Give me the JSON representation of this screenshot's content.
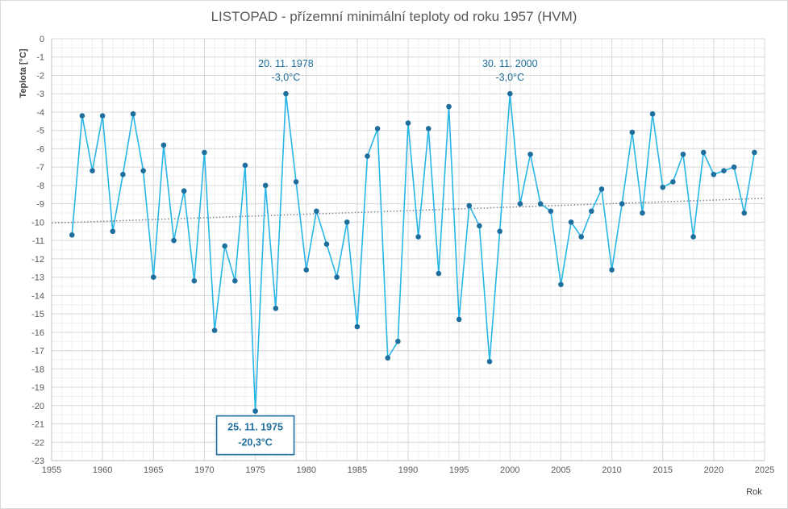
{
  "chart_data": {
    "type": "line",
    "title": "LISTOPAD - přízemní minimální teploty od roku 1957 (HVM)",
    "xlabel": "Rok",
    "ylabel": "Teplota [°C]",
    "xlim": [
      1955,
      2025
    ],
    "ylim": [
      -23,
      0
    ],
    "xticks": [
      1955,
      1960,
      1965,
      1970,
      1975,
      1980,
      1985,
      1990,
      1995,
      2000,
      2005,
      2010,
      2015,
      2020,
      2025
    ],
    "yticks": [
      0,
      -1,
      -2,
      -3,
      -4,
      -5,
      -6,
      -7,
      -8,
      -9,
      -10,
      -11,
      -12,
      -13,
      -14,
      -15,
      -16,
      -17,
      -18,
      -19,
      -20,
      -21,
      -22,
      -23
    ],
    "grid": true,
    "series": [
      {
        "color": "#29b6e6",
        "marker_color": "#1f6f9e",
        "points": [
          [
            1957,
            -10.7
          ],
          [
            1958,
            -4.2
          ],
          [
            1959,
            -7.2
          ],
          [
            1960,
            -4.2
          ],
          [
            1961,
            -10.5
          ],
          [
            1962,
            -7.4
          ],
          [
            1963,
            -4.1
          ],
          [
            1964,
            -7.2
          ],
          [
            1965,
            -13.0
          ],
          [
            1966,
            -5.8
          ],
          [
            1967,
            -11.0
          ],
          [
            1968,
            -8.3
          ],
          [
            1969,
            -13.2
          ],
          [
            1970,
            -6.2
          ],
          [
            1971,
            -15.9
          ],
          [
            1972,
            -11.3
          ],
          [
            1973,
            -13.2
          ],
          [
            1974,
            -6.9
          ],
          [
            1975,
            -20.3
          ],
          [
            1976,
            -8.0
          ],
          [
            1977,
            -14.7
          ],
          [
            1978,
            -3.0
          ],
          [
            1979,
            -7.8
          ],
          [
            1980,
            -12.6
          ],
          [
            1981,
            -9.4
          ],
          [
            1982,
            -11.2
          ],
          [
            1983,
            -13.0
          ],
          [
            1984,
            -10.0
          ],
          [
            1985,
            -15.7
          ],
          [
            1986,
            -6.4
          ],
          [
            1987,
            -4.9
          ],
          [
            1988,
            -17.4
          ],
          [
            1989,
            -16.5
          ],
          [
            1990,
            -4.6
          ],
          [
            1991,
            -10.8
          ],
          [
            1992,
            -4.9
          ],
          [
            1993,
            -12.8
          ],
          [
            1994,
            -3.7
          ],
          [
            1995,
            -15.3
          ],
          [
            1996,
            -9.1
          ],
          [
            1997,
            -10.2
          ],
          [
            1998,
            -17.6
          ],
          [
            1999,
            -10.5
          ],
          [
            2000,
            -3.0
          ],
          [
            2001,
            -9.0
          ],
          [
            2002,
            -6.3
          ],
          [
            2003,
            -9.0
          ],
          [
            2004,
            -9.4
          ],
          [
            2005,
            -13.4
          ],
          [
            2006,
            -10.0
          ],
          [
            2007,
            -10.8
          ],
          [
            2008,
            -9.4
          ],
          [
            2009,
            -8.2
          ],
          [
            2010,
            -12.6
          ],
          [
            2011,
            -9.0
          ],
          [
            2012,
            -5.1
          ],
          [
            2013,
            -9.5
          ],
          [
            2014,
            -4.1
          ],
          [
            2015,
            -8.1
          ],
          [
            2016,
            -7.8
          ],
          [
            2017,
            -6.3
          ],
          [
            2018,
            -10.8
          ],
          [
            2019,
            -6.2
          ],
          [
            2020,
            -7.4
          ],
          [
            2021,
            -7.2
          ],
          [
            2022,
            -7.0
          ],
          [
            2023,
            -9.5
          ],
          [
            2024,
            -6.2
          ]
        ]
      }
    ],
    "trendline": {
      "style": "dotted",
      "color": "#7f8c9a",
      "from": [
        1955,
        -10.05
      ],
      "to": [
        2025,
        -8.7
      ]
    },
    "annotations": [
      {
        "lines": [
          "20. 11. 1978",
          "-3,0°C"
        ],
        "year": 1978,
        "value": -3.0,
        "boxed": false
      },
      {
        "lines": [
          "30. 11. 2000",
          "-3,0°C"
        ],
        "year": 2000,
        "value": -3.0,
        "boxed": false
      },
      {
        "lines": [
          "25. 11. 1975",
          "-20,3°C"
        ],
        "year": 1975,
        "value": -20.3,
        "boxed": true
      }
    ]
  }
}
